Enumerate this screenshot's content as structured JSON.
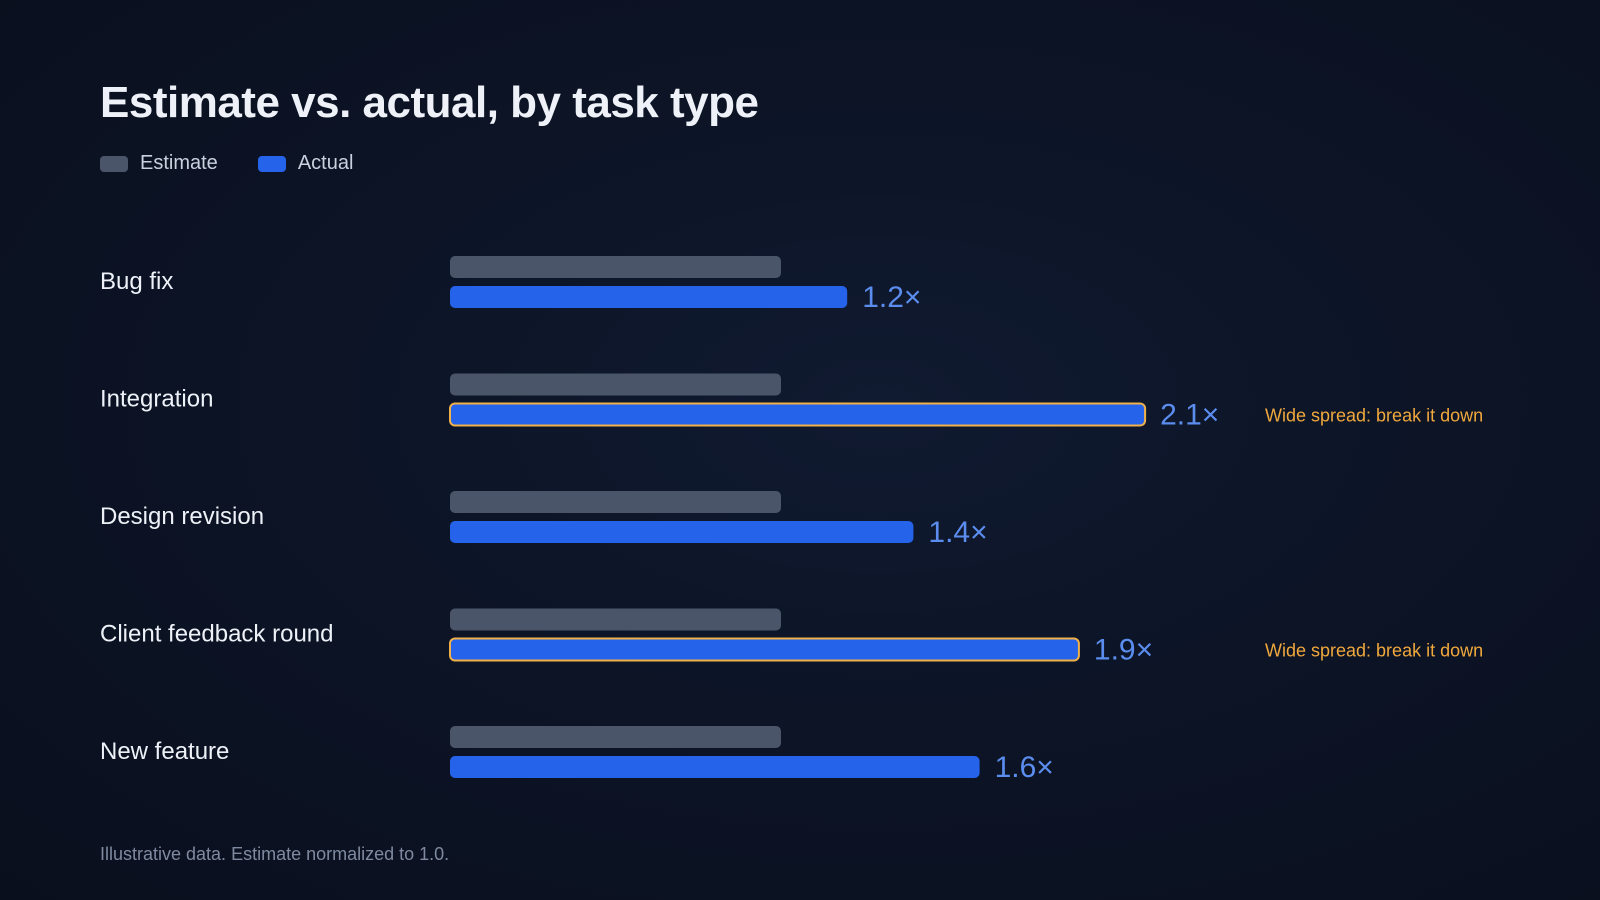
{
  "chart_data": {
    "type": "bar",
    "title": "Estimate vs. actual, by task type",
    "categories": [
      "Bug fix",
      "Integration",
      "Design revision",
      "Client feedback round",
      "New feature"
    ],
    "series": [
      {
        "name": "Estimate",
        "values": [
          1.0,
          1.0,
          1.0,
          1.0,
          1.0
        ]
      },
      {
        "name": "Actual",
        "values": [
          1.2,
          2.1,
          1.4,
          1.9,
          1.6
        ]
      }
    ],
    "value_labels": [
      "1.2×",
      "2.1×",
      "1.4×",
      "1.9×",
      "1.6×"
    ],
    "highlighted": [
      false,
      true,
      false,
      true,
      false
    ],
    "annotations": [
      "",
      "Wide spread: break it down",
      "",
      "Wide spread: break it down",
      ""
    ],
    "xlabel": "",
    "ylabel": "",
    "grid": false,
    "legend_position": "top-left",
    "colors": {
      "estimate": "#4b5569",
      "actual": "#2563eb",
      "highlight_outline": "#f0b04a",
      "value_label": "#5b8def",
      "annotation": "#f0a83c",
      "category_label": "#eef2f8"
    }
  },
  "footnote": "Illustrative data. Estimate normalized to 1.0."
}
